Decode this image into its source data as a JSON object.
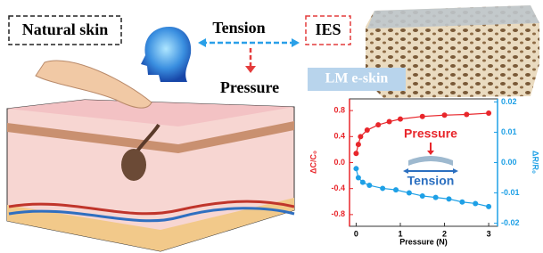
{
  "labels": {
    "natural_skin": "Natural skin",
    "tension": "Tension",
    "pressure": "Pressure",
    "ies": "IES",
    "lm_eskin": "LM e-skin"
  },
  "chart_data": {
    "type": "scatter",
    "x_label": "Pressure (N)",
    "y_label": "ΔC/C₀",
    "y2_label": "ΔR/R₀",
    "annotations": {
      "pressure": "Pressure",
      "tension": "Tension"
    },
    "xlim": [
      -0.15,
      3.2
    ],
    "xticks": [
      0,
      1,
      2,
      3
    ],
    "ylim": [
      -0.98,
      0.98
    ],
    "yticks": [
      0.8,
      0.4,
      {
        "value": 0,
        "label": "0.0"
      },
      -0.4,
      -0.8
    ],
    "y2lim": [
      -0.021,
      0.021
    ],
    "y2ticks": [
      0.02,
      0.01,
      {
        "value": 0,
        "label": "0.00"
      },
      {
        "value": -0.01,
        "label": "-0.01"
      },
      {
        "value": -0.02,
        "label": "-0.02"
      }
    ],
    "series": [
      {
        "name": "ΔC/C₀",
        "color": "#e8262b",
        "x": [
          0,
          0.05,
          0.1,
          0.25,
          0.5,
          0.75,
          1.0,
          1.5,
          2.0,
          2.5,
          3.0
        ],
        "values": [
          0.14,
          0.28,
          0.4,
          0.5,
          0.58,
          0.63,
          0.67,
          0.71,
          0.73,
          0.74,
          0.76
        ]
      },
      {
        "name": "ΔR/R₀",
        "color": "#1ea0e6",
        "axis": "y2",
        "x": [
          0,
          0.05,
          0.15,
          0.3,
          0.6,
          0.9,
          1.2,
          1.5,
          1.8,
          2.1,
          2.4,
          2.7,
          3.0
        ],
        "values": [
          -0.002,
          -0.005,
          -0.0065,
          -0.0075,
          -0.0085,
          -0.009,
          -0.01,
          -0.011,
          -0.0115,
          -0.012,
          -0.013,
          -0.0135,
          -0.0145
        ]
      }
    ]
  }
}
